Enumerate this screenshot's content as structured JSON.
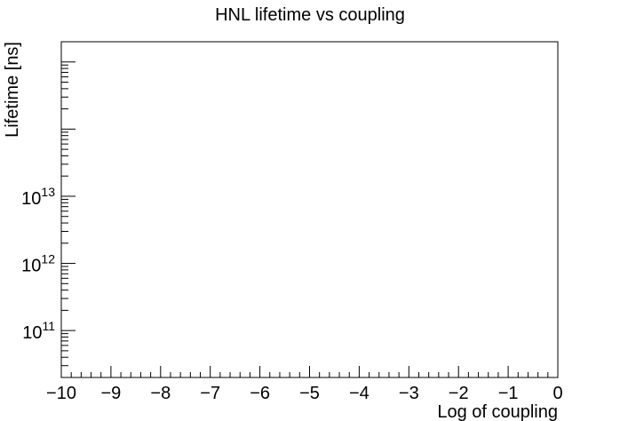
{
  "chart_data": {
    "type": "line",
    "title": "HNL lifetime vs coupling",
    "xlabel": "Log of coupling",
    "ylabel": "Lifetime [ns]",
    "xlim": [
      -10,
      0
    ],
    "ylim": [
      20000000000,
      2000000000000000
    ],
    "y_scale": "log",
    "x_ticks": [
      {
        "value": -10,
        "label": "−10"
      },
      {
        "value": -9,
        "label": "−9"
      },
      {
        "value": -8,
        "label": "−8"
      },
      {
        "value": -7,
        "label": "−7"
      },
      {
        "value": -6,
        "label": "−6"
      },
      {
        "value": -5,
        "label": "−5"
      },
      {
        "value": -4,
        "label": "−4"
      },
      {
        "value": -3,
        "label": "−3"
      },
      {
        "value": -2,
        "label": "−2"
      },
      {
        "value": -1,
        "label": "−1"
      },
      {
        "value": 0,
        "label": "0"
      }
    ],
    "y_ticks": [
      {
        "value": 100000000000,
        "base": "10",
        "exponent": "11"
      },
      {
        "value": 1000000000000,
        "base": "10",
        "exponent": "12"
      },
      {
        "value": 10000000000000,
        "base": "10",
        "exponent": "13"
      }
    ],
    "series": [],
    "grid": false,
    "colors": {
      "axis": "#000000",
      "background": "#ffffff"
    }
  }
}
